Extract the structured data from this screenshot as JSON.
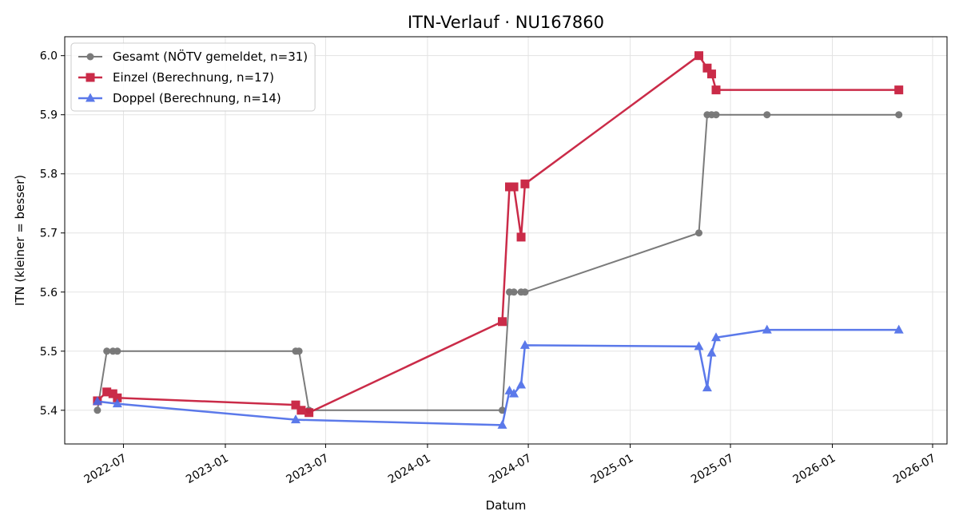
{
  "chart_data": {
    "type": "line",
    "title": "ITN-Verlauf · NU167860",
    "xlabel": "Datum",
    "ylabel": "ITN  (kleiner = besser)",
    "xlim": [
      "2022-03-17",
      "2026-07-27"
    ],
    "ylim": [
      5.343,
      6.032
    ],
    "x_ticks": [
      "2022-07",
      "2023-01",
      "2023-07",
      "2024-01",
      "2024-07",
      "2025-01",
      "2025-07",
      "2026-01",
      "2026-07"
    ],
    "y_ticks": [
      "5.4",
      "5.5",
      "5.6",
      "5.7",
      "5.8",
      "5.9",
      "6.0"
    ],
    "grid": true,
    "legend_position": "top-left",
    "series": [
      {
        "name": "Gesamt (NÖTV gemeldet, n=31)",
        "color": "#444444",
        "marker": "circle",
        "points": [
          [
            "2022-05-15",
            5.4
          ],
          [
            "2022-06-01",
            5.5
          ],
          [
            "2022-06-12",
            5.5
          ],
          [
            "2022-06-20",
            5.5
          ],
          [
            "2023-05-08",
            5.5
          ],
          [
            "2023-05-14",
            5.5
          ],
          [
            "2023-06-01",
            5.4
          ],
          [
            "2024-05-15",
            5.4
          ],
          [
            "2024-05-28",
            5.6
          ],
          [
            "2024-06-05",
            5.6
          ],
          [
            "2024-06-18",
            5.6
          ],
          [
            "2024-06-25",
            5.6
          ],
          [
            "2025-05-05",
            5.7
          ],
          [
            "2025-05-20",
            5.9
          ],
          [
            "2025-05-28",
            5.9
          ],
          [
            "2025-06-05",
            5.9
          ],
          [
            "2025-09-05",
            5.9
          ],
          [
            "2026-05-01",
            5.9
          ]
        ]
      },
      {
        "name": "Einzel (Berechnung, n=17)",
        "color": "#c8203f",
        "marker": "square",
        "points": [
          [
            "2022-05-15",
            5.416
          ],
          [
            "2022-06-01",
            5.431
          ],
          [
            "2022-06-12",
            5.428
          ],
          [
            "2022-06-20",
            5.421
          ],
          [
            "2023-05-08",
            5.409
          ],
          [
            "2023-05-18",
            5.4
          ],
          [
            "2023-06-01",
            5.396
          ],
          [
            "2024-05-15",
            5.55
          ],
          [
            "2024-05-28",
            5.778
          ],
          [
            "2024-06-05",
            5.778
          ],
          [
            "2024-06-18",
            5.693
          ],
          [
            "2024-06-25",
            5.783
          ],
          [
            "2025-05-05",
            6.0
          ],
          [
            "2025-05-20",
            5.979
          ],
          [
            "2025-05-28",
            5.969
          ],
          [
            "2025-06-05",
            5.942
          ],
          [
            "2026-05-01",
            5.942
          ]
        ]
      },
      {
        "name": "Doppel (Berechnung, n=14)",
        "color": "#4a6be8",
        "marker": "triangle",
        "points": [
          [
            "2022-05-15",
            5.415
          ],
          [
            "2022-06-20",
            5.411
          ],
          [
            "2023-05-08",
            5.384
          ],
          [
            "2024-05-15",
            5.375
          ],
          [
            "2024-05-28",
            5.433
          ],
          [
            "2024-06-05",
            5.428
          ],
          [
            "2024-06-18",
            5.443
          ],
          [
            "2024-06-25",
            5.51
          ],
          [
            "2025-05-05",
            5.508
          ],
          [
            "2025-05-20",
            5.438
          ],
          [
            "2025-05-28",
            5.497
          ],
          [
            "2025-06-05",
            5.523
          ],
          [
            "2025-09-05",
            5.536
          ],
          [
            "2026-05-01",
            5.536
          ]
        ]
      }
    ]
  }
}
